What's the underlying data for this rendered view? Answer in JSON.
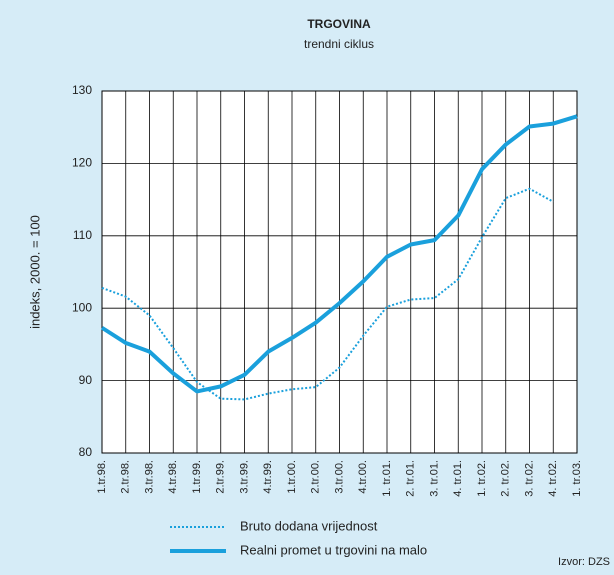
{
  "chart_data": {
    "type": "line",
    "title": "TRGOVINA",
    "subtitle": "trendni ciklus",
    "y_label": "indeks, 2000. = 100",
    "source": "Izvor: DZS",
    "categories": [
      "1.tr.98.",
      "2.tr.98.",
      "3.tr.98.",
      "4.tr.98.",
      "1.tr.99.",
      "2.tr.99.",
      "3.tr.99.",
      "4.tr.99.",
      "1.tr.00.",
      "2.tr.00.",
      "3.tr.00.",
      "4.tr.00.",
      "1. tr.01.",
      "2. tr.01.",
      "3. tr.01.",
      "4. tr.01.",
      "1. tr.02.",
      "2. tr.02.",
      "3. tr.02.",
      "4. tr.02.",
      "1. tr.03."
    ],
    "series": [
      {
        "name": "Bruto dodana vrijednost",
        "color": "#1aa0dc",
        "style": "dotted",
        "values": [
          102.8,
          101.6,
          99.0,
          94.5,
          89.8,
          87.5,
          87.4,
          88.2,
          88.8,
          89.1,
          91.8,
          96.2,
          100.2,
          101.2,
          101.4,
          104.0,
          109.8,
          115.2,
          116.5,
          114.7,
          null
        ]
      },
      {
        "name": "Realni promet u trgovini na malo",
        "color": "#1aa0dc",
        "style": "solid",
        "values": [
          97.3,
          95.2,
          94.0,
          91.0,
          88.5,
          89.2,
          90.8,
          94.0,
          95.9,
          98.0,
          100.7,
          103.7,
          107.1,
          108.8,
          109.4,
          112.8,
          119.2,
          122.6,
          125.1,
          125.5,
          126.5
        ]
      }
    ],
    "ylim": [
      80,
      130
    ],
    "yticks": [
      80,
      90,
      100,
      110,
      120,
      130
    ],
    "grid": true
  }
}
